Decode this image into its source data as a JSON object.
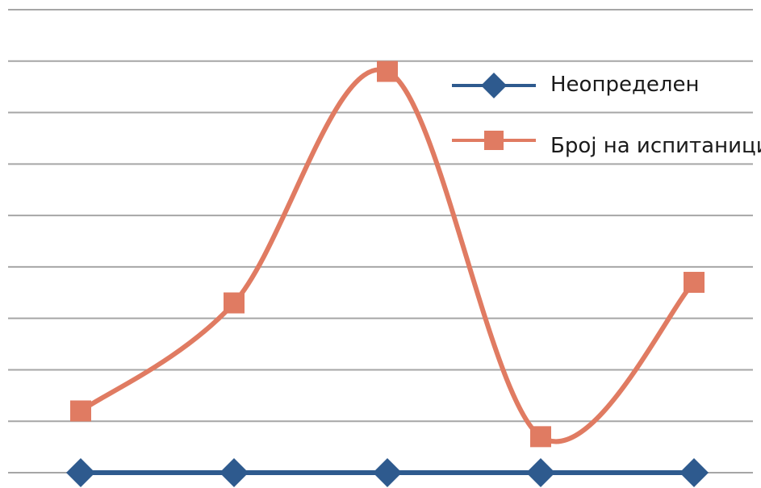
{
  "chart_data": {
    "type": "line",
    "categories": [
      "",
      "",
      "",
      "",
      ""
    ],
    "ylim": [
      0,
      9
    ],
    "grid": true,
    "legend_position": "top-right",
    "smooth": true,
    "series": [
      {
        "name": "Неопределен",
        "values": [
          0,
          0,
          0,
          0,
          0
        ],
        "marker": "diamond",
        "color": "#2E5A8E"
      },
      {
        "name": "Број на испитаници",
        "values": [
          1.2,
          3.3,
          7.8,
          0.7,
          3.7
        ],
        "marker": "square",
        "color": "#E07B62"
      }
    ]
  }
}
